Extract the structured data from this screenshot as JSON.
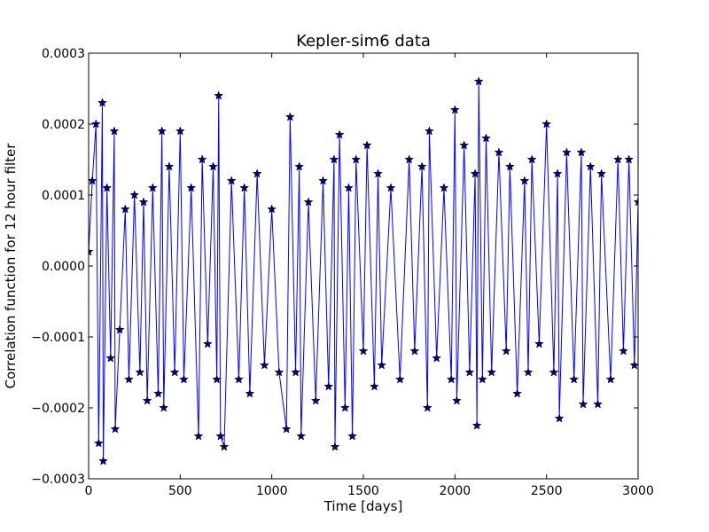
{
  "chart_data": {
    "type": "line",
    "title": "Kepler-sim6 data",
    "xlabel": "Time [days]",
    "ylabel": "Correlation function for 12 hour filter",
    "xlim": [
      0,
      3000
    ],
    "ylim": [
      -0.0003,
      0.0003
    ],
    "x_ticks": [
      0,
      500,
      1000,
      1500,
      2000,
      2500,
      3000
    ],
    "x_tick_labels": [
      "0",
      "500",
      "1000",
      "1500",
      "2000",
      "2500",
      "3000"
    ],
    "y_ticks": [
      -0.0003,
      -0.0002,
      -0.0001,
      0.0,
      0.0001,
      0.0002,
      0.0003
    ],
    "y_tick_labels": [
      "−0.0003",
      "−0.0002",
      "−0.0001",
      "0.0000",
      "0.0001",
      "0.0002",
      "0.0003"
    ],
    "grid": false,
    "series": [
      {
        "line_color": "#0000ff",
        "marker": "star",
        "marker_color": "#000080",
        "points": [
          [
            0,
            2e-05
          ],
          [
            20,
            0.00012
          ],
          [
            40,
            0.0002
          ],
          [
            55,
            -0.00025
          ],
          [
            75,
            0.00023
          ],
          [
            80,
            -0.000275
          ],
          [
            100,
            0.00011
          ],
          [
            120,
            -0.00013
          ],
          [
            140,
            0.00019
          ],
          [
            145,
            -0.00023
          ],
          [
            170,
            -9e-05
          ],
          [
            200,
            8e-05
          ],
          [
            220,
            -0.00016
          ],
          [
            250,
            0.0001
          ],
          [
            280,
            -0.00015
          ],
          [
            300,
            9e-05
          ],
          [
            320,
            -0.00019
          ],
          [
            350,
            0.00011
          ],
          [
            380,
            -0.00018
          ],
          [
            400,
            0.00019
          ],
          [
            410,
            -0.0002
          ],
          [
            440,
            0.00014
          ],
          [
            470,
            -0.00015
          ],
          [
            500,
            0.00019
          ],
          [
            520,
            -0.00016
          ],
          [
            560,
            0.00011
          ],
          [
            600,
            -0.00024
          ],
          [
            620,
            0.00015
          ],
          [
            650,
            -0.00011
          ],
          [
            680,
            0.00014
          ],
          [
            700,
            -0.00016
          ],
          [
            710,
            0.00024
          ],
          [
            720,
            -0.00024
          ],
          [
            740,
            -0.000255
          ],
          [
            780,
            0.00012
          ],
          [
            820,
            -0.00016
          ],
          [
            850,
            0.00011
          ],
          [
            880,
            -0.00018
          ],
          [
            920,
            0.00013
          ],
          [
            960,
            -0.00014
          ],
          [
            1000,
            8e-05
          ],
          [
            1040,
            -0.00015
          ],
          [
            1080,
            -0.00023
          ],
          [
            1100,
            0.00021
          ],
          [
            1130,
            -0.00015
          ],
          [
            1150,
            0.00014
          ],
          [
            1160,
            -0.00024
          ],
          [
            1200,
            9e-05
          ],
          [
            1240,
            -0.00019
          ],
          [
            1280,
            0.00012
          ],
          [
            1310,
            -0.00017
          ],
          [
            1340,
            0.00015
          ],
          [
            1345,
            -0.000255
          ],
          [
            1370,
            0.000185
          ],
          [
            1400,
            -0.0002
          ],
          [
            1420,
            0.00011
          ],
          [
            1440,
            -0.00024
          ],
          [
            1460,
            0.00015
          ],
          [
            1500,
            -0.00012
          ],
          [
            1520,
            0.00017
          ],
          [
            1560,
            -0.00017
          ],
          [
            1580,
            0.00013
          ],
          [
            1600,
            -0.00014
          ],
          [
            1650,
            0.00011
          ],
          [
            1700,
            -0.00016
          ],
          [
            1750,
            0.00015
          ],
          [
            1780,
            -0.00012
          ],
          [
            1820,
            0.00014
          ],
          [
            1850,
            -0.0002
          ],
          [
            1860,
            0.00019
          ],
          [
            1900,
            -0.00013
          ],
          [
            1940,
            0.00011
          ],
          [
            1980,
            -0.00016
          ],
          [
            2000,
            0.00022
          ],
          [
            2010,
            -0.00019
          ],
          [
            2050,
            0.00017
          ],
          [
            2080,
            -0.00015
          ],
          [
            2110,
            0.00013
          ],
          [
            2120,
            -0.000225
          ],
          [
            2130,
            0.00026
          ],
          [
            2150,
            -0.00016
          ],
          [
            2170,
            0.00018
          ],
          [
            2200,
            -0.00015
          ],
          [
            2240,
            0.00016
          ],
          [
            2280,
            -0.00012
          ],
          [
            2300,
            0.00014
          ],
          [
            2340,
            -0.00018
          ],
          [
            2380,
            0.00012
          ],
          [
            2400,
            -0.00015
          ],
          [
            2420,
            0.00015
          ],
          [
            2460,
            -0.00011
          ],
          [
            2500,
            0.0002
          ],
          [
            2540,
            -0.00015
          ],
          [
            2560,
            0.00013
          ],
          [
            2570,
            -0.000215
          ],
          [
            2610,
            0.00016
          ],
          [
            2650,
            -0.00016
          ],
          [
            2690,
            0.00016
          ],
          [
            2700,
            -0.000195
          ],
          [
            2740,
            0.00014
          ],
          [
            2780,
            -0.000195
          ],
          [
            2800,
            0.00013
          ],
          [
            2850,
            -0.00016
          ],
          [
            2890,
            0.00015
          ],
          [
            2920,
            -0.00012
          ],
          [
            2950,
            0.00015
          ],
          [
            2980,
            -0.00014
          ],
          [
            3000,
            9e-05
          ]
        ]
      }
    ]
  }
}
